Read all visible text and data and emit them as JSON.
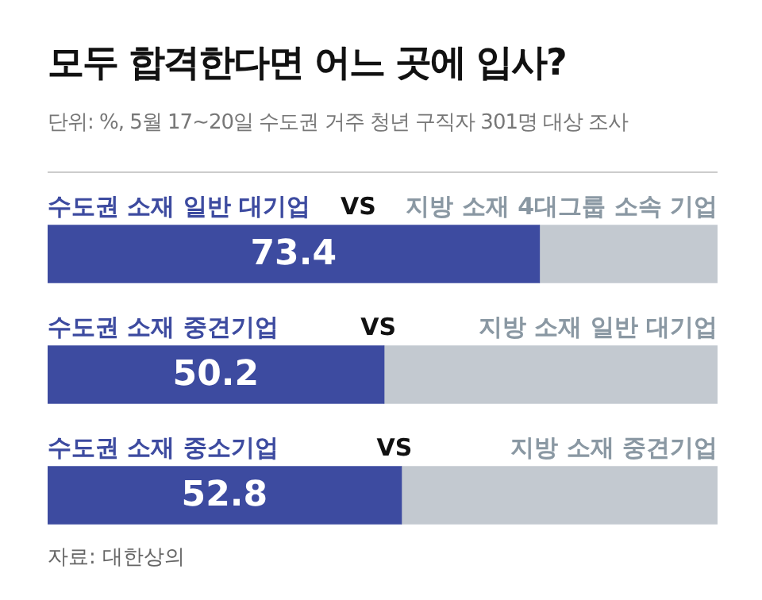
{
  "chart_data": {
    "type": "bar",
    "orientation": "horizontal",
    "stacked": true,
    "title": "모두 합격한다면 어느 곳에 입사?",
    "subtitle": "단위: %, 5월 17~20일 수도권 거주 청년 구직자 301명 대상 조사",
    "categories": [
      "수도권 소재 일반 대기업",
      "수도권 소재 중견기업",
      "수도권 소재 중소기업"
    ],
    "series": [
      {
        "color": "#3d4ba0",
        "values": [
          73.4,
          50.2,
          52.8
        ],
        "value_labels": [
          "73.4",
          "50.2",
          "52.8"
        ]
      },
      {
        "color": "#c3c9d0",
        "values": [
          26.6,
          49.8,
          47.2
        ]
      }
    ],
    "xlim": [
      0,
      100
    ],
    "tick_labels": false,
    "legend": false,
    "annotations": [
      "지방 소재 4대그룹 소속 기업",
      "지방 소재 일반 대기업",
      "지방 소재 중견기업",
      "VS",
      "VS",
      "VS",
      "자료: 대한상의"
    ]
  }
}
